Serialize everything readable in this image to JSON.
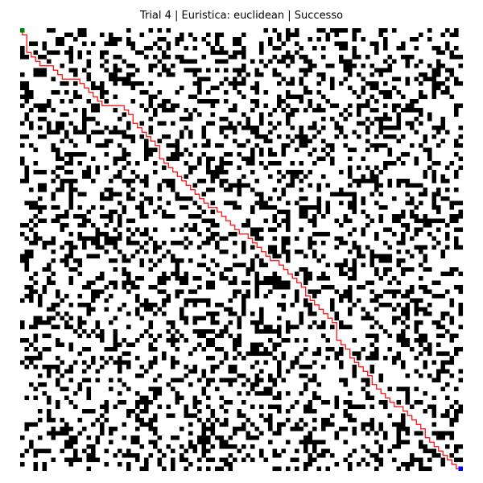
{
  "title": "Trial 4 | Euristica: euclidean | Successo",
  "grid": {
    "rows": 100,
    "cols": 100,
    "obstacle_density": 0.3,
    "seed": 4
  },
  "colors": {
    "free": "#ffffff",
    "obstacle": "#000000",
    "path": "#ff0000",
    "start": "#008000",
    "goal": "#0000ff"
  },
  "start": {
    "row": 0,
    "col": 0
  },
  "goal": {
    "row": 99,
    "col": 99
  },
  "path_waypoints": [
    {
      "row": 0,
      "col": 0
    },
    {
      "row": 1,
      "col": 1
    },
    {
      "row": 8,
      "col": 5
    },
    {
      "row": 11,
      "col": 10
    },
    {
      "row": 17,
      "col": 19
    },
    {
      "row": 19,
      "col": 25
    },
    {
      "row": 26,
      "col": 31
    },
    {
      "row": 33,
      "col": 36
    },
    {
      "row": 40,
      "col": 43
    },
    {
      "row": 46,
      "col": 50
    },
    {
      "row": 52,
      "col": 57
    },
    {
      "row": 58,
      "col": 64
    },
    {
      "row": 66,
      "col": 71
    },
    {
      "row": 72,
      "col": 74
    },
    {
      "row": 78,
      "col": 79
    },
    {
      "row": 85,
      "col": 85
    },
    {
      "row": 90,
      "col": 91
    },
    {
      "row": 95,
      "col": 95
    },
    {
      "row": 99,
      "col": 99
    }
  ]
}
